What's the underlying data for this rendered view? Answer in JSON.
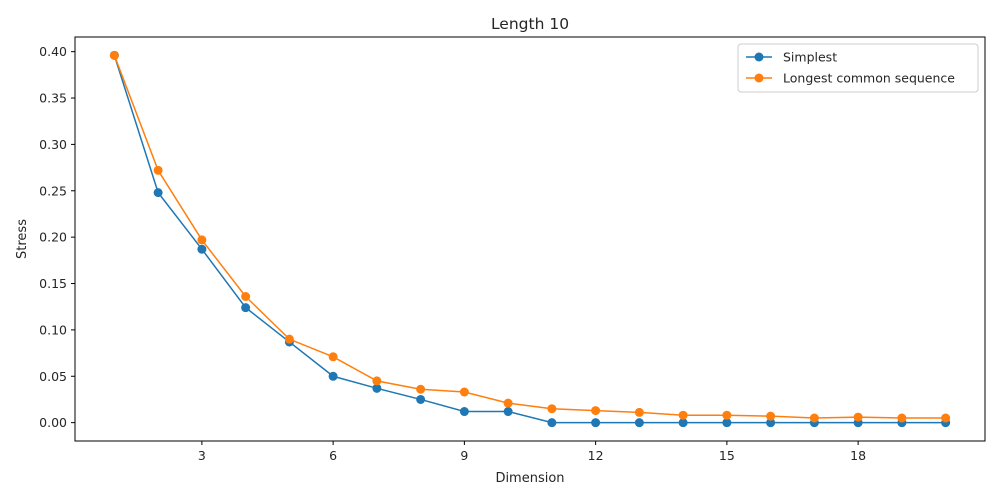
{
  "chart_data": {
    "type": "line",
    "title": "Length 10",
    "xlabel": "Dimension",
    "ylabel": "Stress",
    "xlim": [
      0.1,
      20.9
    ],
    "ylim": [
      -0.0198,
      0.4158
    ],
    "xticks": [
      3,
      6,
      9,
      12,
      15,
      18
    ],
    "yticks": [
      0.0,
      0.05,
      0.1,
      0.15,
      0.2,
      0.25,
      0.3,
      0.35,
      0.4
    ],
    "ytick_labels": [
      "0.00",
      "0.05",
      "0.10",
      "0.15",
      "0.20",
      "0.25",
      "0.30",
      "0.35",
      "0.40"
    ],
    "grid": false,
    "legend_position": "top-right",
    "x": [
      1,
      2,
      3,
      4,
      5,
      6,
      7,
      8,
      9,
      10,
      11,
      12,
      13,
      14,
      15,
      16,
      17,
      18,
      19,
      20
    ],
    "series": [
      {
        "name": "Simplest",
        "color": "#1f77b4",
        "values": [
          0.396,
          0.248,
          0.187,
          0.124,
          0.087,
          0.05,
          0.037,
          0.025,
          0.012,
          0.012,
          0.0,
          0.0,
          0.0,
          0.0,
          0.0,
          0.0,
          0.0,
          0.0,
          0.0,
          0.0
        ]
      },
      {
        "name": "Longest common sequence",
        "color": "#ff7f0e",
        "values": [
          0.396,
          0.272,
          0.197,
          0.136,
          0.09,
          0.071,
          0.045,
          0.036,
          0.033,
          0.021,
          0.015,
          0.013,
          0.011,
          0.008,
          0.008,
          0.007,
          0.005,
          0.006,
          0.005,
          0.005
        ]
      }
    ]
  }
}
